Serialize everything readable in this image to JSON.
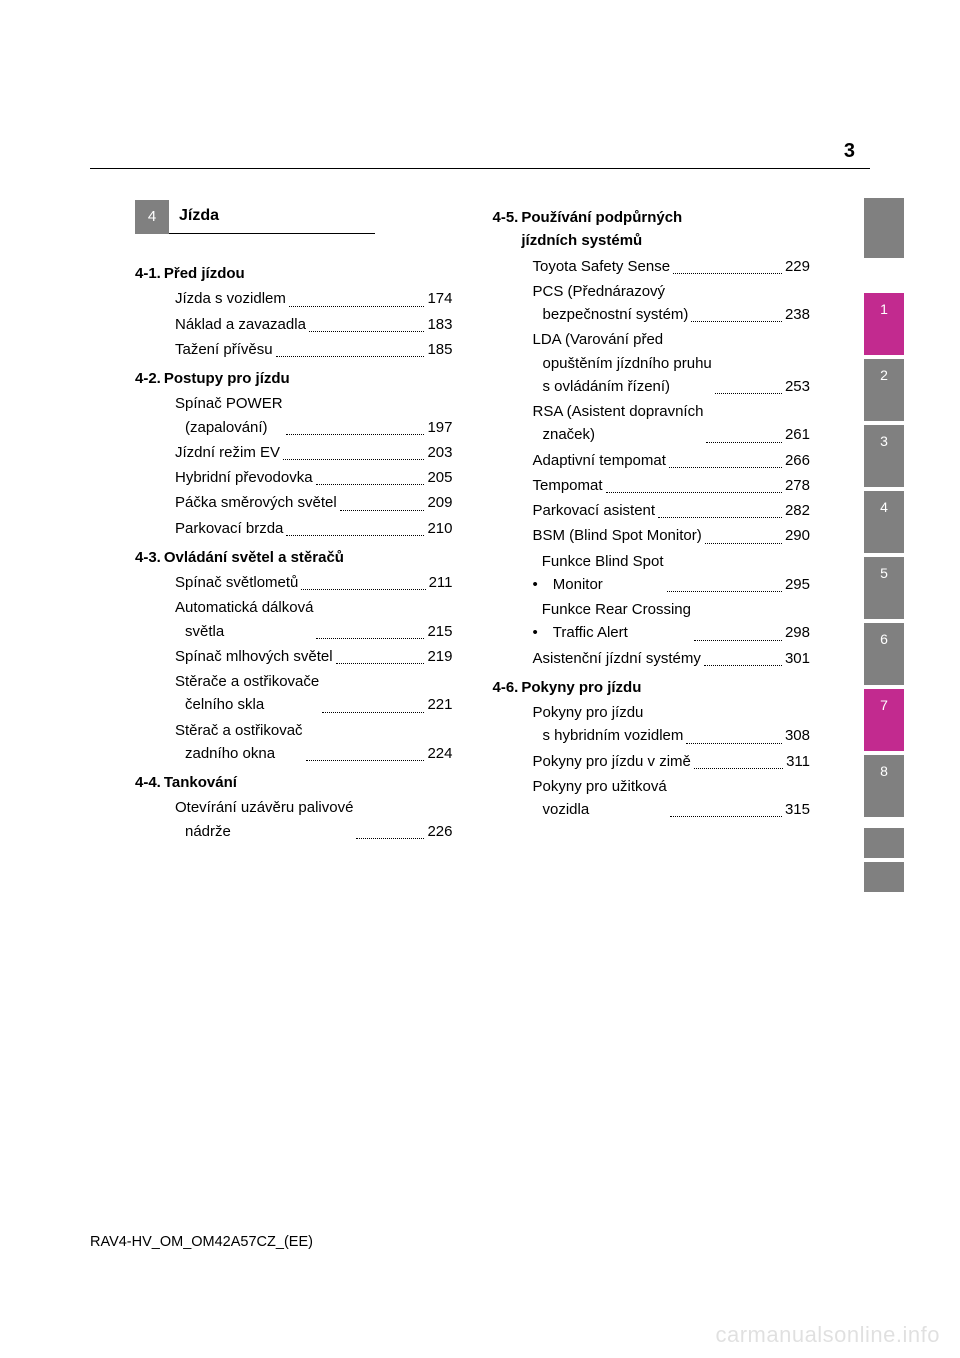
{
  "page_number": "3",
  "chapter": {
    "num": "4",
    "title": "Jízda"
  },
  "left_sections": [
    {
      "num": "4-1.",
      "title": "Před jízdou",
      "entries": [
        {
          "lines": [
            "Jízda s vozidlem"
          ],
          "page": "174"
        },
        {
          "lines": [
            "Náklad a zavazadla"
          ],
          "page": "183"
        },
        {
          "lines": [
            "Tažení přívěsu"
          ],
          "page": "185"
        }
      ]
    },
    {
      "num": "4-2.",
      "title": "Postupy pro jízdu",
      "entries": [
        {
          "lines": [
            "Spínač POWER",
            "(zapalování)"
          ],
          "page": "197"
        },
        {
          "lines": [
            "Jízdní režim EV"
          ],
          "page": "203"
        },
        {
          "lines": [
            "Hybridní převodovka"
          ],
          "page": "205"
        },
        {
          "lines": [
            "Páčka směrových světel"
          ],
          "page": "209"
        },
        {
          "lines": [
            "Parkovací brzda"
          ],
          "page": "210"
        }
      ]
    },
    {
      "num": "4-3.",
      "title": "Ovládání světel a stěračů",
      "entries": [
        {
          "lines": [
            "Spínač světlometů"
          ],
          "page": "211"
        },
        {
          "lines": [
            "Automatická dálková",
            "světla"
          ],
          "page": "215"
        },
        {
          "lines": [
            "Spínač mlhových světel"
          ],
          "page": "219"
        },
        {
          "lines": [
            "Stěrače a ostřikovače",
            "čelního skla"
          ],
          "page": "221"
        },
        {
          "lines": [
            "Stěrač a ostřikovač",
            "zadního okna"
          ],
          "page": "224"
        }
      ]
    },
    {
      "num": "4-4.",
      "title": "Tankování",
      "entries": [
        {
          "lines": [
            "Otevírání uzávěru palivové",
            "nádrže"
          ],
          "page": "226"
        }
      ]
    }
  ],
  "right_sections": [
    {
      "num": "4-5.",
      "title_lines": [
        "Používání podpůrných",
        "jízdních systémů"
      ],
      "entries": [
        {
          "lines": [
            "Toyota Safety Sense"
          ],
          "page": "229"
        },
        {
          "lines": [
            "PCS (Přednárazový",
            "bezpečnostní systém)"
          ],
          "page": "238"
        },
        {
          "lines": [
            "LDA (Varování před",
            "opuštěním jízdního pruhu",
            "s ovládáním řízení)"
          ],
          "page": "253"
        },
        {
          "lines": [
            "RSA (Asistent dopravních",
            "značek)"
          ],
          "page": "261"
        },
        {
          "lines": [
            "Adaptivní tempomat"
          ],
          "page": "266"
        },
        {
          "lines": [
            "Tempomat"
          ],
          "page": "278"
        },
        {
          "lines": [
            "Parkovací asistent"
          ],
          "page": "282"
        },
        {
          "lines": [
            "BSM (Blind Spot Monitor)"
          ],
          "page": "290",
          "tight": true
        },
        {
          "bullet": true,
          "lines": [
            "Funkce Blind Spot",
            "Monitor"
          ],
          "page": "295"
        },
        {
          "bullet": true,
          "lines": [
            "Funkce Rear Crossing",
            "Traffic Alert"
          ],
          "page": "298"
        },
        {
          "lines": [
            "Asistenční jízdní systémy"
          ],
          "page": "301",
          "tight": true
        }
      ]
    },
    {
      "num": "4-6.",
      "title_lines": [
        "Pokyny pro jízdu"
      ],
      "entries": [
        {
          "lines": [
            "Pokyny pro jízdu",
            "s hybridním vozidlem"
          ],
          "page": "308"
        },
        {
          "lines": [
            "Pokyny pro jízdu v zimě"
          ],
          "page": "311"
        },
        {
          "lines": [
            "Pokyny pro užitková",
            "vozidla"
          ],
          "page": "315"
        }
      ]
    }
  ],
  "side_tabs": [
    {
      "n": "1",
      "color": "magenta"
    },
    {
      "n": "2",
      "color": "gray"
    },
    {
      "n": "3",
      "color": "gray"
    },
    {
      "n": "4",
      "color": "gray"
    },
    {
      "n": "5",
      "color": "gray"
    },
    {
      "n": "6",
      "color": "gray"
    },
    {
      "n": "7",
      "color": "magenta"
    },
    {
      "n": "8",
      "color": "gray"
    }
  ],
  "colors": {
    "gray": "#808080",
    "magenta": "#c22a8f",
    "text": "#000000",
    "bg": "#ffffff"
  },
  "footer": "RAV4-HV_OM_OM42A57CZ_(EE)",
  "watermark": "carmanualsonline.info"
}
